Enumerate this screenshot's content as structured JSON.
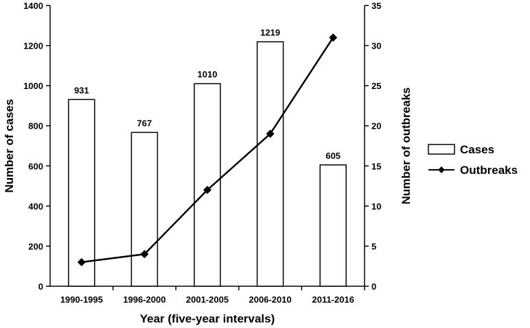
{
  "chart_data": {
    "type": "bar",
    "categories": [
      "1990-1995",
      "1996-2000",
      "2001-2005",
      "2006-2010",
      "2011-2016"
    ],
    "series": [
      {
        "name": "Cases",
        "type": "bar",
        "axis": "left",
        "values": [
          931,
          767,
          1010,
          1219,
          605
        ],
        "data_labels": [
          "931",
          "767",
          "1010",
          "1219",
          "605"
        ],
        "fill": "#ffffff",
        "stroke": "#000000"
      },
      {
        "name": "Outbreaks",
        "type": "line",
        "axis": "right",
        "marker": "diamond",
        "values": [
          3,
          4,
          12,
          19,
          31
        ],
        "color": "#000000"
      }
    ],
    "xlabel": "Year (five-year intervals)",
    "ylabel": "Number of cases",
    "ylabel_right": "Number of outbreaks",
    "ylim": [
      0,
      1400
    ],
    "ylim_right": [
      0,
      35
    ],
    "yticks": [
      "0",
      "200",
      "400",
      "600",
      "800",
      "1000",
      "1200",
      "1400"
    ],
    "yticks_right": [
      "0",
      "5",
      "10",
      "15",
      "20",
      "25",
      "30",
      "35"
    ],
    "grid": false,
    "legend_position": "right"
  }
}
